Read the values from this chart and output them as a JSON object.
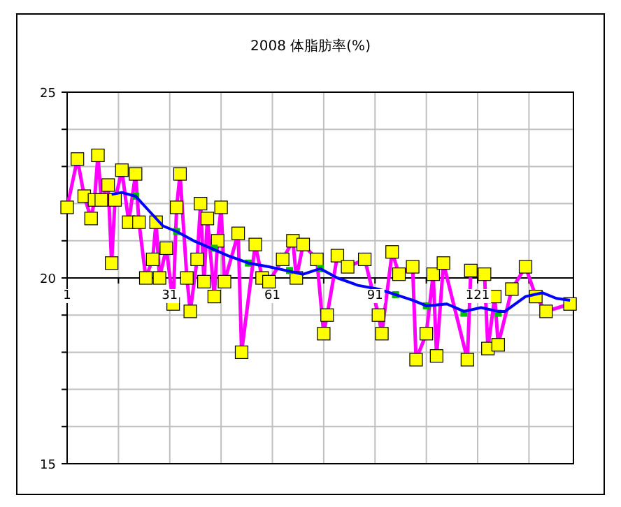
{
  "chart_data": {
    "type": "line",
    "title": "2008 体脂肪率(%)",
    "xlim": [
      1,
      149
    ],
    "ylim": [
      15,
      25
    ],
    "xticks": [
      1,
      {
        "value": 16,
        "label": null
      },
      31,
      {
        "value": 46,
        "label": null
      },
      61,
      {
        "value": 76,
        "label": null
      },
      91,
      {
        "value": 106,
        "label": null
      },
      121,
      {
        "value": 136,
        "label": null
      }
    ],
    "yticks": [
      15,
      {
        "value": 16,
        "label": null
      },
      {
        "value": 17,
        "label": null
      },
      {
        "value": 18,
        "label": null
      },
      {
        "value": 19,
        "label": null
      },
      20,
      {
        "value": 21,
        "label": null
      },
      {
        "value": 22,
        "label": null
      },
      {
        "value": 23,
        "label": null
      },
      {
        "value": 24,
        "label": null
      },
      25
    ],
    "grid": true,
    "series": [
      {
        "color": "#ff00ff",
        "marker": "square",
        "x": [
          1,
          4,
          6,
          8,
          9,
          10,
          11,
          13,
          14,
          15,
          17,
          19,
          21,
          22,
          24,
          26,
          27,
          28,
          30,
          32,
          33,
          34,
          36,
          37,
          39,
          40,
          41,
          42,
          44,
          45,
          46,
          47,
          51,
          52,
          56,
          58,
          60,
          64,
          67,
          68,
          70,
          74,
          76,
          77,
          80,
          83,
          88,
          92,
          93,
          96,
          98,
          102,
          103,
          106,
          108,
          109,
          111,
          118,
          119,
          123,
          124,
          126,
          127,
          131,
          135,
          138,
          141,
          148
        ],
        "values": [
          21.9,
          23.2,
          22.2,
          21.6,
          22.1,
          23.3,
          22.1,
          22.5,
          20.4,
          22.1,
          22.9,
          21.5,
          22.8,
          21.5,
          20.0,
          20.5,
          21.5,
          20.0,
          20.8,
          19.3,
          21.9,
          22.8,
          20.0,
          19.1,
          20.5,
          22.0,
          19.9,
          21.6,
          19.5,
          21.0,
          21.9,
          19.9,
          21.2,
          18.0,
          20.9,
          20.0,
          19.9,
          20.5,
          21.0,
          20.0,
          20.9,
          20.5,
          18.5,
          19.0,
          20.6,
          20.3,
          20.5,
          19.0,
          18.5,
          20.7,
          20.1,
          20.3,
          17.8,
          18.5,
          20.1,
          17.9,
          20.4,
          17.8,
          20.2,
          20.1,
          18.1,
          19.5,
          18.2,
          19.7,
          20.3,
          19.5,
          19.1,
          19.3
        ]
      },
      {
        "color": "#0000ff",
        "marker": "none",
        "x": [
          14,
          17,
          21,
          25,
          29,
          33,
          38,
          43,
          48,
          54,
          60,
          65,
          70,
          75,
          80,
          86,
          92,
          97,
          102,
          106,
          112,
          117,
          122,
          127,
          129,
          135,
          140,
          144,
          148
        ],
        "values": [
          22.25,
          22.3,
          22.2,
          21.8,
          21.4,
          21.25,
          21.0,
          20.8,
          20.6,
          20.4,
          20.3,
          20.2,
          20.1,
          20.25,
          20.0,
          19.8,
          19.7,
          19.55,
          19.4,
          19.25,
          19.3,
          19.1,
          19.2,
          19.1,
          19.1,
          19.5,
          19.6,
          19.45,
          19.4
        ]
      },
      {
        "type": "scatter",
        "color": "#00c000",
        "marker": "square",
        "x": [
          21,
          33,
          44,
          54,
          66,
          75,
          97,
          106,
          117,
          127
        ],
        "values": [
          22.2,
          21.25,
          20.8,
          20.4,
          20.2,
          20.25,
          19.55,
          19.25,
          19.05,
          19.05
        ]
      }
    ]
  }
}
